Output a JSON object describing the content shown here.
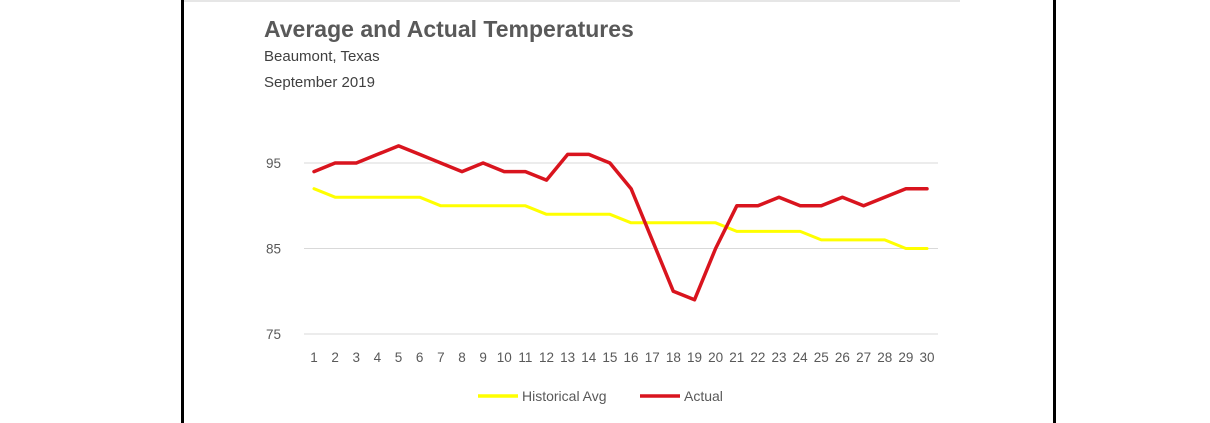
{
  "chart_data": {
    "type": "line",
    "title": "Average and Actual Temperatures",
    "subtitle_lines": [
      "Beaumont, Texas",
      "September 2019"
    ],
    "categories": [
      "1",
      "2",
      "3",
      "4",
      "5",
      "6",
      "7",
      "8",
      "9",
      "10",
      "11",
      "12",
      "13",
      "14",
      "15",
      "16",
      "17",
      "18",
      "19",
      "20",
      "21",
      "22",
      "23",
      "24",
      "25",
      "26",
      "27",
      "28",
      "29",
      "30"
    ],
    "y_ticks": [
      75,
      85,
      95
    ],
    "ylim": [
      75,
      95
    ],
    "grid": true,
    "legend_position": "bottom",
    "series": [
      {
        "name": "Historical Avg",
        "color": "#ffff00",
        "values": [
          92,
          91,
          91,
          91,
          91,
          91,
          90,
          90,
          90,
          90,
          90,
          89,
          89,
          89,
          89,
          88,
          88,
          88,
          88,
          88,
          87,
          87,
          87,
          87,
          86,
          86,
          86,
          86,
          85,
          85
        ]
      },
      {
        "name": "Actual",
        "color": "#d9141e",
        "values": [
          94,
          95,
          95,
          96,
          97,
          96,
          95,
          94,
          95,
          94,
          94,
          93,
          96,
          96,
          95,
          92,
          86,
          80,
          79,
          85,
          90,
          90,
          91,
          90,
          90,
          91,
          90,
          91,
          92,
          92
        ]
      }
    ]
  }
}
